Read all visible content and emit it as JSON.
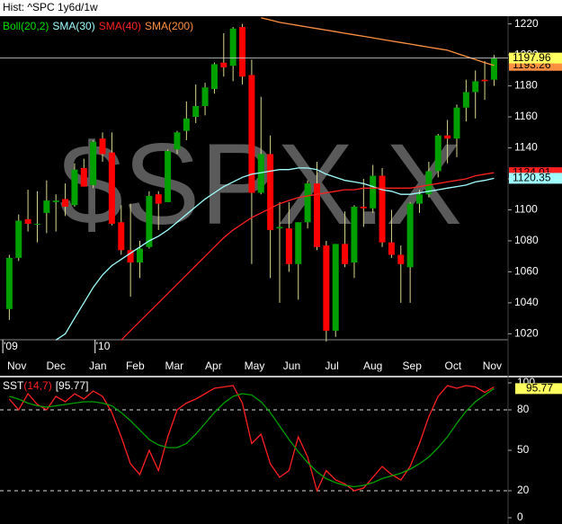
{
  "chart_data": [
    {
      "type": "candlestick",
      "title": "Hist: ^SPC 1y6d/1w",
      "watermark": "$SPX.X",
      "indicator_labels": [
        {
          "name": "Boll(20,2)",
          "color": "#00e000"
        }
      ],
      "up_color": "#00a000",
      "down_color": "#ff0000",
      "wick_color": "#d8d890",
      "open": [
        1036,
        1069,
        1094,
        1091,
        1098,
        1105,
        1107,
        1103,
        1127,
        1116,
        1146,
        1137,
        1092,
        1074,
        1066,
        1076,
        1110,
        1105,
        1139,
        1151,
        1160,
        1167,
        1178,
        1195,
        1193,
        1218,
        1187,
        1111,
        1136,
        1088,
        1088,
        1065,
        1092,
        1117,
        1077,
        1022,
        1078,
        1066,
        1102,
        1101,
        1122,
        1079,
        1071,
        1063,
        1104,
        1110,
        1125,
        1148,
        1146,
        1166,
        1176,
        1184,
        1184
      ],
      "high": [
        1071,
        1097,
        1113,
        1112,
        1119,
        1110,
        1117,
        1130,
        1133,
        1145,
        1150,
        1150,
        1103,
        1104,
        1080,
        1112,
        1112,
        1139,
        1151,
        1170,
        1181,
        1182,
        1195,
        1214,
        1218,
        1220,
        1197,
        1173,
        1148,
        1105,
        1105,
        1092,
        1119,
        1131,
        1080,
        1078,
        1099,
        1103,
        1120,
        1129,
        1127,
        1100,
        1077,
        1105,
        1113,
        1131,
        1149,
        1158,
        1168,
        1184,
        1190,
        1196,
        1200
      ],
      "low": [
        1029,
        1067,
        1086,
        1079,
        1085,
        1086,
        1096,
        1102,
        1115,
        1114,
        1131,
        1090,
        1071,
        1044,
        1056,
        1075,
        1087,
        1105,
        1136,
        1145,
        1156,
        1161,
        1175,
        1186,
        1183,
        1181,
        1065,
        1110,
        1056,
        1040,
        1060,
        1042,
        1088,
        1074,
        1010,
        1018,
        1063,
        1056,
        1089,
        1098,
        1076,
        1069,
        1040,
        1040,
        1098,
        1108,
        1121,
        1130,
        1134,
        1157,
        1159,
        1171,
        1180
      ],
      "close": [
        1069,
        1093,
        1091,
        1091,
        1106,
        1106,
        1102,
        1126,
        1115,
        1144,
        1136,
        1091,
        1074,
        1066,
        1075,
        1109,
        1104,
        1138,
        1150,
        1159,
        1167,
        1179,
        1194,
        1192,
        1217,
        1186,
        1111,
        1136,
        1087,
        1089,
        1065,
        1092,
        1117,
        1076,
        1022,
        1078,
        1065,
        1102,
        1101,
        1122,
        1079,
        1071,
        1065,
        1104,
        1110,
        1125,
        1148,
        1146,
        1166,
        1176,
        1183,
        1183,
        1197.96
      ],
      "series": [
        {
          "name": "SMA(30)",
          "color": "#a0ffff",
          "values": [
            null,
            null,
            null,
            null,
            null,
            1016,
            1020,
            1030,
            1040,
            1050,
            1058,
            1064,
            1068,
            1072,
            1076,
            1080,
            1083,
            1087,
            1092,
            1097,
            1102,
            1107,
            1111,
            1115,
            1118,
            1121,
            1123,
            1124,
            1125,
            1126,
            1126,
            1127,
            1127,
            1126,
            1123,
            1121,
            1119,
            1118,
            1117,
            1115,
            1113,
            1112,
            1110,
            1110,
            1111,
            1112,
            1113,
            1114,
            1115,
            1116,
            1118,
            1119,
            1120.35
          ]
        },
        {
          "name": "SMA(40)",
          "color": "#ff2020",
          "values": [
            null,
            null,
            null,
            null,
            null,
            null,
            null,
            null,
            null,
            null,
            null,
            null,
            1016,
            1022,
            1028,
            1034,
            1040,
            1046,
            1052,
            1058,
            1064,
            1070,
            1076,
            1082,
            1087,
            1091,
            1095,
            1098,
            1101,
            1104,
            1106,
            1108,
            1109,
            1110,
            1111,
            1112,
            1113,
            1113,
            1114,
            1114,
            1114,
            1114,
            1114,
            1114,
            1115,
            1116,
            1117,
            1118,
            1119,
            1120,
            1122,
            1123,
            1124.01
          ]
        },
        {
          "name": "SMA(200)",
          "color": "#ff9040",
          "values": [
            null,
            null,
            null,
            null,
            null,
            null,
            null,
            null,
            null,
            null,
            null,
            null,
            null,
            null,
            null,
            null,
            null,
            null,
            null,
            null,
            null,
            null,
            null,
            null,
            null,
            null,
            null,
            1224,
            1222.5,
            1221,
            1220,
            1219,
            1218,
            1217,
            1216,
            1215,
            1214,
            1213,
            1212,
            1211,
            1210,
            1209,
            1208,
            1207,
            1206,
            1205,
            1204,
            1203,
            1201,
            1199,
            1197,
            1195,
            1193.26
          ]
        }
      ],
      "ylim": [
        1015,
        1225
      ],
      "yticks": [
        1020,
        1040,
        1060,
        1080,
        1100,
        1120,
        1140,
        1160,
        1180,
        1200,
        1220
      ],
      "xlim": [
        -1,
        53.5
      ],
      "xticks": [
        {
          "value": 0.8,
          "label": "Nov"
        },
        {
          "value": 5,
          "label": "Dec"
        },
        {
          "value": 9.5,
          "label": "Jan"
        },
        {
          "value": 13.5,
          "label": "Feb"
        },
        {
          "value": 17.7,
          "label": "Mar"
        },
        {
          "value": 21.9,
          "label": "Apr"
        },
        {
          "value": 26.3,
          "label": "May"
        },
        {
          "value": 30.3,
          "label": "Jun"
        },
        {
          "value": 34.6,
          "label": "Jul"
        },
        {
          "value": 39,
          "label": "Aug"
        },
        {
          "value": 43.2,
          "label": "Sep"
        },
        {
          "value": 47.6,
          "label": "Oct"
        },
        {
          "value": 51.8,
          "label": "Nov"
        }
      ],
      "year_ticks": [
        {
          "value": -0.7,
          "label": "'09"
        },
        {
          "value": 9.2,
          "label": "'10"
        }
      ]
    },
    {
      "type": "line",
      "name": "SST",
      "params": "(14,7)",
      "current_label": "[95.77]",
      "series": [
        {
          "color": "#ff2020",
          "values": [
            88,
            80,
            92,
            84,
            80,
            90,
            86,
            92,
            88,
            94,
            90,
            78,
            60,
            40,
            32,
            50,
            35,
            60,
            80,
            85,
            88,
            92,
            96,
            97,
            98,
            85,
            55,
            62,
            40,
            30,
            35,
            60,
            45,
            20,
            35,
            28,
            25,
            20,
            22,
            30,
            38,
            32,
            28,
            38,
            55,
            75,
            90,
            98,
            96,
            98,
            97,
            93,
            97
          ]
        },
        {
          "color": "#00a000",
          "values": [
            90,
            88,
            85,
            83,
            82,
            83,
            84,
            85,
            86,
            86,
            85,
            83,
            78,
            72,
            65,
            58,
            54,
            52,
            52,
            55,
            62,
            70,
            78,
            85,
            90,
            92,
            91,
            86,
            78,
            68,
            58,
            49,
            41,
            34,
            29,
            26,
            24,
            23,
            24,
            26,
            29,
            31,
            33,
            36,
            40,
            45,
            52,
            60,
            70,
            79,
            86,
            91,
            95.77
          ]
        }
      ],
      "ylim": [
        0,
        100
      ],
      "yticks": [
        0,
        20,
        50,
        80,
        100
      ],
      "dashed_grid": [
        20,
        80
      ]
    }
  ]
}
